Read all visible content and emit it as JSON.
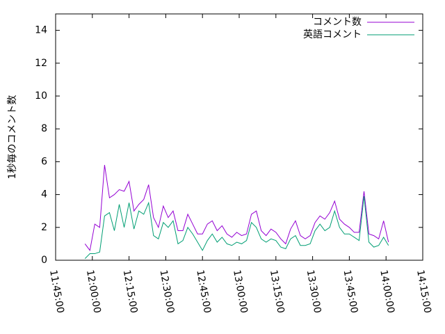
{
  "chart_data": {
    "type": "line",
    "ylabel": "1秒毎のコメント数",
    "x": [
      "11:57:00",
      "11:59:00",
      "12:01:00",
      "12:03:00",
      "12:05:00",
      "12:07:00",
      "12:09:00",
      "12:11:00",
      "12:13:00",
      "12:15:00",
      "12:17:00",
      "12:19:00",
      "12:21:00",
      "12:23:00",
      "12:25:00",
      "12:27:00",
      "12:29:00",
      "12:31:00",
      "12:33:00",
      "12:35:00",
      "12:37:00",
      "12:39:00",
      "12:41:00",
      "12:43:00",
      "12:45:00",
      "12:47:00",
      "12:49:00",
      "12:51:00",
      "12:53:00",
      "12:55:00",
      "12:57:00",
      "12:59:00",
      "13:01:00",
      "13:03:00",
      "13:05:00",
      "13:07:00",
      "13:09:00",
      "13:11:00",
      "13:13:00",
      "13:15:00",
      "13:17:00",
      "13:19:00",
      "13:21:00",
      "13:23:00",
      "13:25:00",
      "13:27:00",
      "13:29:00",
      "13:31:00",
      "13:33:00",
      "13:35:00",
      "13:37:00",
      "13:39:00",
      "13:41:00",
      "13:43:00",
      "13:45:00",
      "13:47:00",
      "13:49:00",
      "13:51:00",
      "13:53:00",
      "13:55:00",
      "13:57:00",
      "13:59:00",
      "14:01:00"
    ],
    "series": [
      {
        "name": "コメント数",
        "color": "#9400d3",
        "values": [
          1.0,
          0.6,
          2.2,
          2.0,
          5.8,
          3.8,
          4.0,
          4.3,
          4.2,
          4.8,
          3.0,
          3.4,
          3.7,
          4.6,
          2.6,
          2.0,
          3.3,
          2.6,
          3.0,
          1.8,
          1.8,
          2.8,
          2.2,
          1.6,
          1.6,
          2.2,
          2.4,
          1.8,
          2.1,
          1.6,
          1.4,
          1.7,
          1.5,
          1.6,
          2.8,
          3.0,
          1.8,
          1.5,
          1.9,
          1.7,
          1.3,
          1.0,
          1.9,
          2.4,
          1.5,
          1.3,
          1.5,
          2.3,
          2.7,
          2.5,
          2.9,
          3.6,
          2.5,
          2.2,
          2.0,
          1.7,
          1.7,
          4.2,
          1.6,
          1.5,
          1.3,
          2.4,
          1.1
        ]
      },
      {
        "name": "英語コメント",
        "color": "#009e73",
        "values": [
          0.1,
          0.4,
          0.4,
          0.5,
          2.7,
          2.9,
          1.8,
          3.4,
          2.0,
          3.5,
          1.9,
          3.0,
          2.8,
          3.5,
          1.5,
          1.3,
          2.3,
          2.0,
          2.4,
          1.0,
          1.2,
          2.0,
          1.6,
          1.1,
          0.6,
          1.2,
          1.6,
          1.1,
          1.4,
          1.0,
          0.9,
          1.1,
          1.0,
          1.2,
          2.3,
          2.0,
          1.3,
          1.1,
          1.3,
          1.2,
          0.8,
          0.7,
          1.3,
          1.5,
          0.9,
          0.9,
          1.0,
          1.8,
          2.2,
          1.8,
          2.0,
          3.0,
          2.0,
          1.6,
          1.6,
          1.4,
          1.2,
          3.9,
          1.1,
          0.8,
          0.9,
          1.4,
          0.9
        ]
      }
    ],
    "xlim": [
      "11:45:00",
      "14:15:00"
    ],
    "xticks": [
      "11:45:00",
      "12:00:00",
      "12:15:00",
      "12:30:00",
      "12:45:00",
      "13:00:00",
      "13:15:00",
      "13:30:00",
      "13:45:00",
      "14:00:00",
      "14:15:00"
    ],
    "ylim": [
      0,
      15
    ],
    "yticks": [
      0,
      2,
      4,
      6,
      8,
      10,
      12,
      14
    ],
    "legend": "top-right"
  }
}
